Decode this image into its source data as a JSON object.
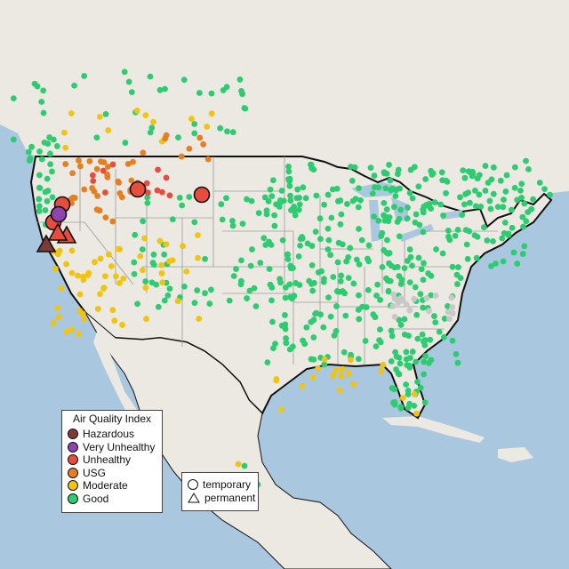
{
  "legend": {
    "title": "Air Quality Index",
    "categories": [
      {
        "label": "Hazardous",
        "color": "#7e3b36"
      },
      {
        "label": "Very Unhealthy",
        "color": "#8e44ad"
      },
      {
        "label": "Unhealthy",
        "color": "#e74c3c"
      },
      {
        "label": "USG",
        "color": "#e67e22"
      },
      {
        "label": "Moderate",
        "color": "#f1c40f"
      },
      {
        "label": "Good",
        "color": "#2ecc71"
      }
    ]
  },
  "shape_legend": {
    "temporary": "temporary",
    "permanent": "permanent"
  },
  "colors": {
    "ocean": "#a9c7de",
    "land": "#ece9e3",
    "border": "#111111",
    "state_line": "#9a9a9a",
    "no_data": "#c8c8c8"
  }
}
